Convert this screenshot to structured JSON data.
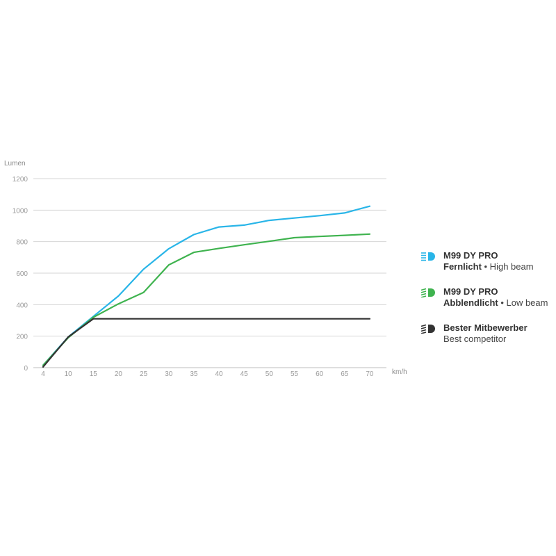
{
  "chart_data": {
    "type": "line",
    "ylabel": "Lumen",
    "xlabel": "km/h",
    "x": [
      4,
      10,
      15,
      20,
      25,
      30,
      35,
      40,
      45,
      50,
      55,
      60,
      65,
      70
    ],
    "xticks": [
      "4",
      "10",
      "15",
      "20",
      "25",
      "30",
      "35",
      "40",
      "45",
      "50",
      "55",
      "60",
      "65",
      "70"
    ],
    "yticks": [
      "0",
      "200",
      "400",
      "600",
      "800",
      "1000",
      "1200"
    ],
    "ylim": [
      0,
      1200
    ],
    "grid": true,
    "legend_position": "right",
    "series": [
      {
        "key": "high",
        "color": "#29b5e8",
        "values": [
          15,
          195,
          325,
          455,
          625,
          755,
          845,
          893,
          905,
          935,
          950,
          965,
          982,
          1025
        ]
      },
      {
        "key": "low",
        "color": "#3fb34f",
        "values": [
          15,
          190,
          320,
          405,
          478,
          652,
          732,
          757,
          780,
          802,
          825,
          833,
          840,
          848
        ]
      },
      {
        "key": "competitor",
        "color": "#333333",
        "values": [
          5,
          195,
          310,
          310,
          310,
          310,
          310,
          310,
          310,
          310,
          310,
          310,
          310,
          310
        ]
      }
    ]
  },
  "legend": [
    {
      "title": "M99 DY PRO",
      "sub_bold": "Fernlicht",
      "sub_rest": " • High beam",
      "color": "#29b5e8",
      "icon": "headlight-high-icon"
    },
    {
      "title": "M99 DY PRO",
      "sub_bold": "Abblendlicht",
      "sub_rest": " • Low beam",
      "color": "#3fb34f",
      "icon": "headlight-low-icon"
    },
    {
      "title": "Bester Mitbewerber",
      "sub_bold": "",
      "sub_rest": "Best competitor",
      "color": "#333333",
      "icon": "headlight-competitor-icon"
    }
  ]
}
